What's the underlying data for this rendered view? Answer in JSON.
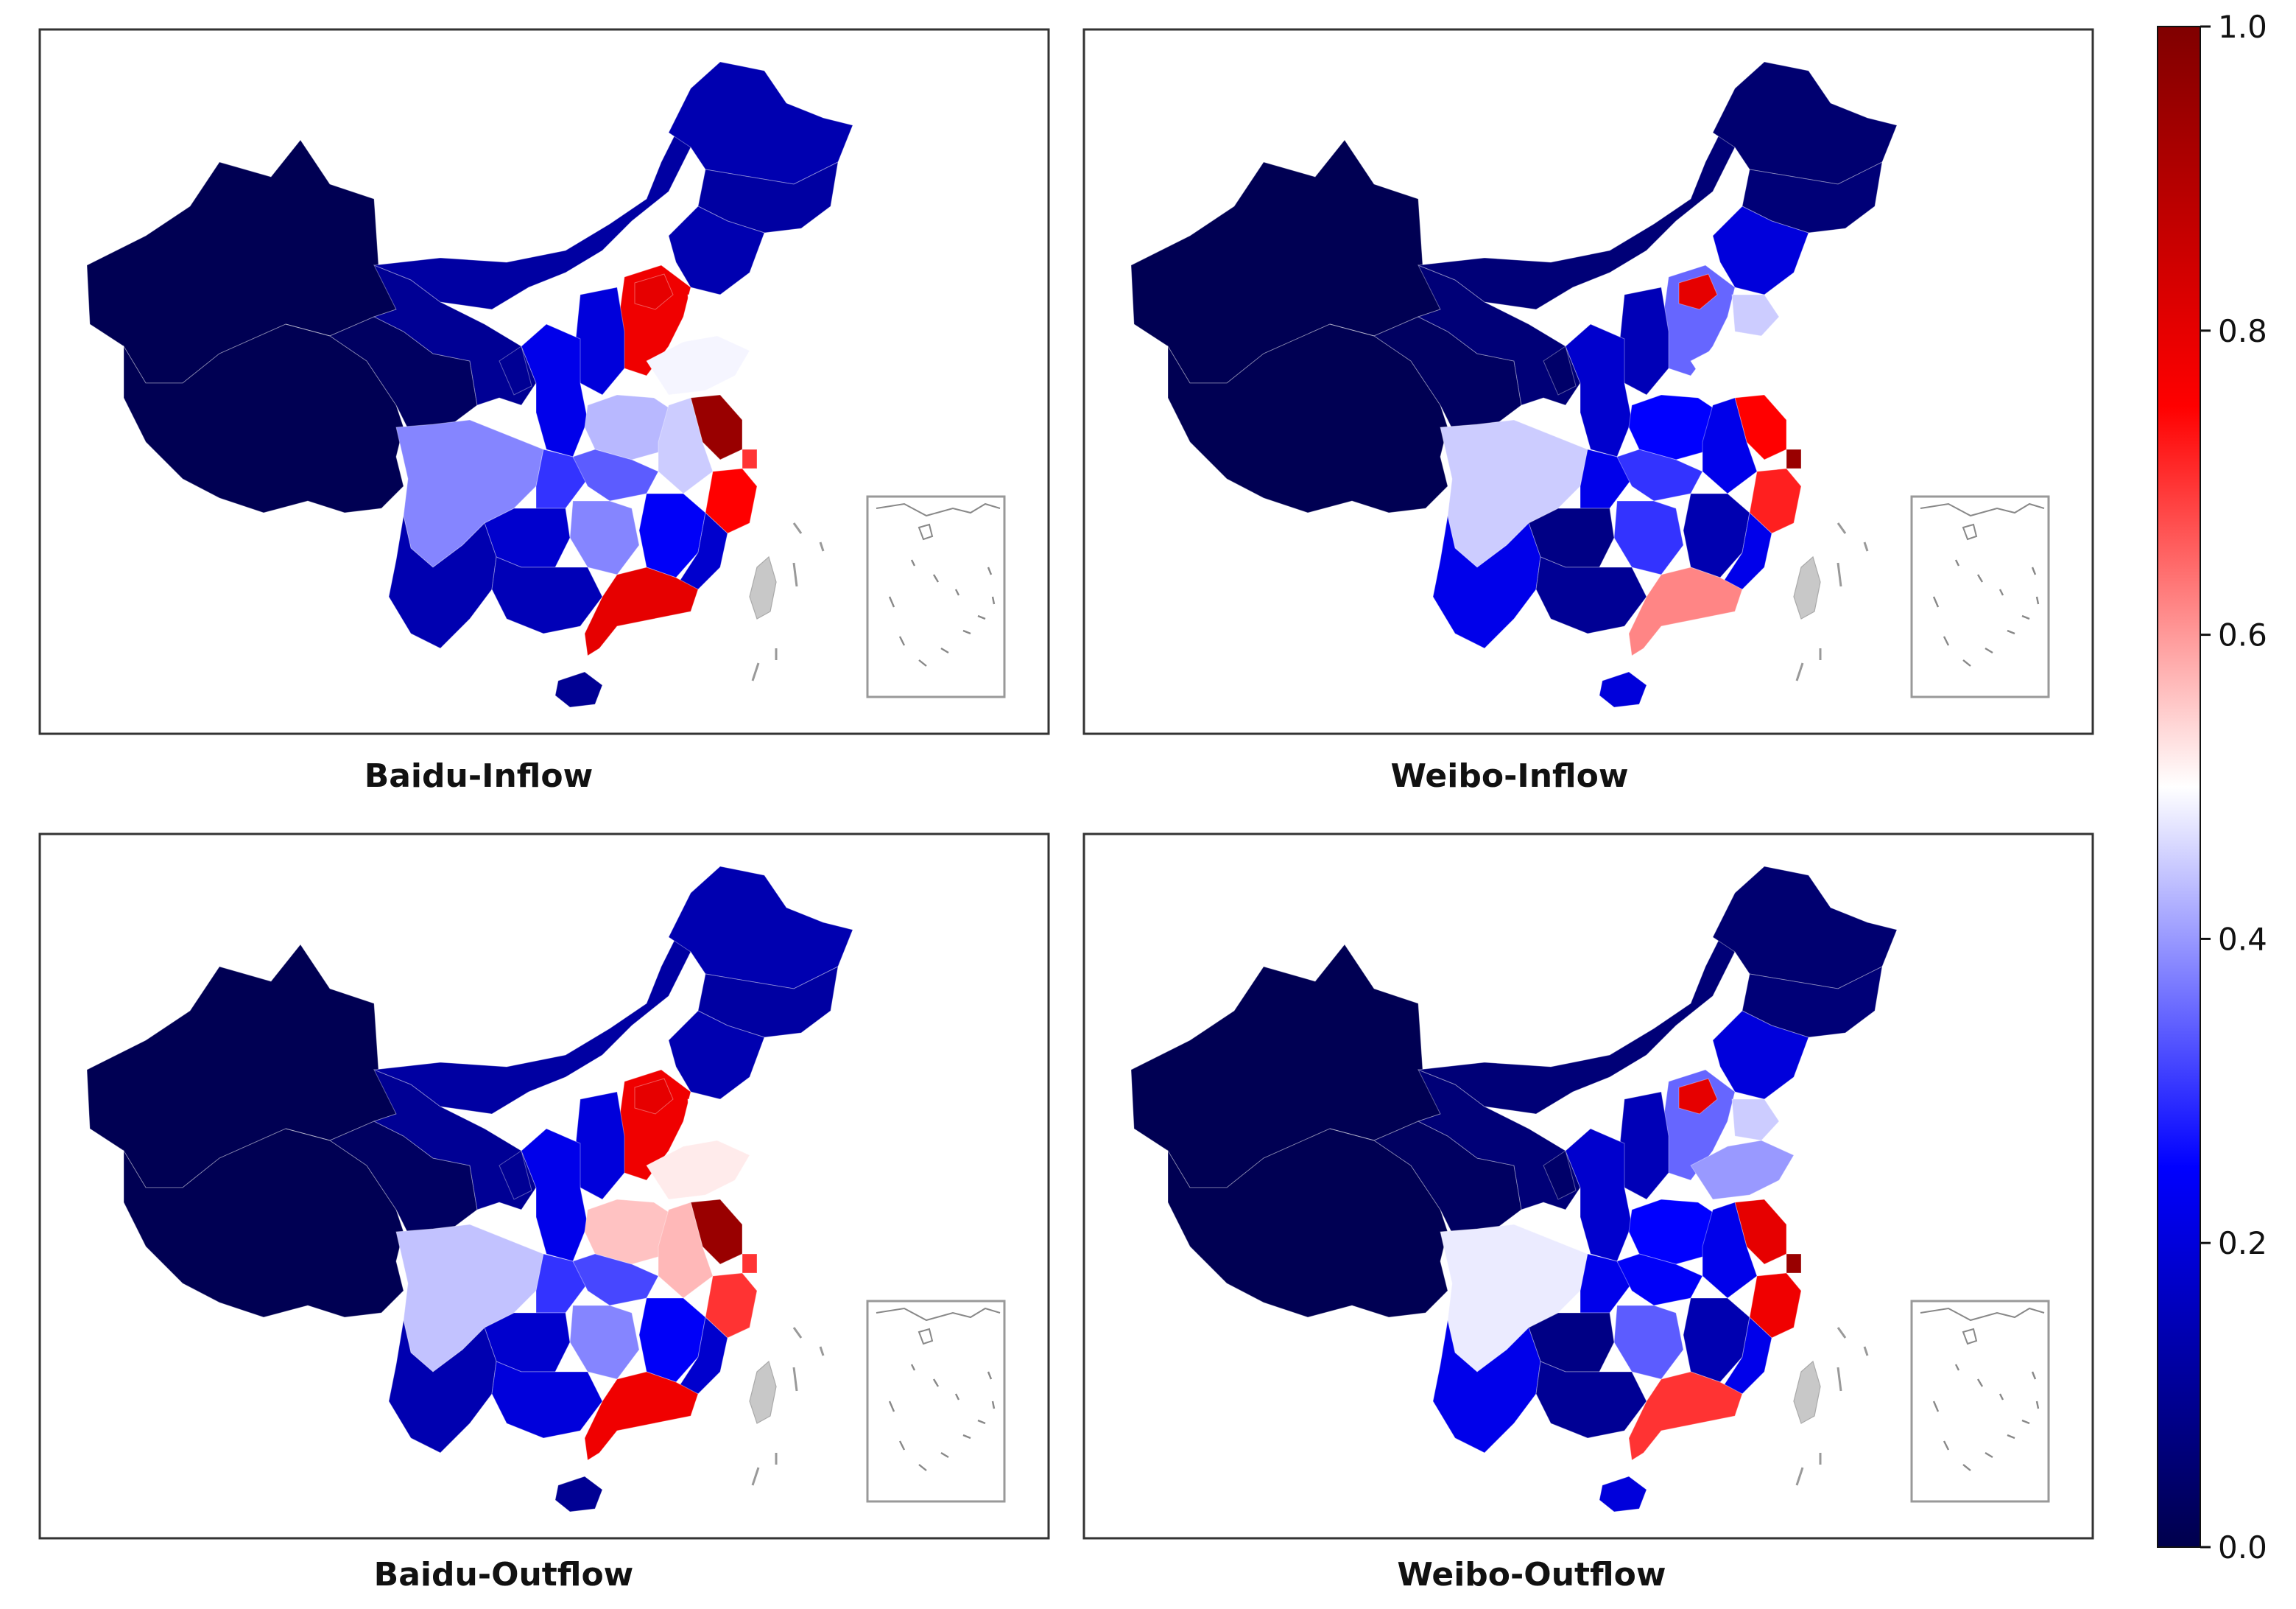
{
  "panels": [
    {
      "title": "Baidu-Inflow",
      "regions": {
        "xinjiang": 0.01,
        "tibet": 0.01,
        "qinghai": 0.03,
        "gansu": 0.1,
        "inner_mongolia": 0.12,
        "heilongjiang": 0.14,
        "jilin": 0.12,
        "liaoning": 0.14,
        "beijing": 0.8,
        "hebei": 0.78,
        "tianjin": 0.5,
        "shanxi": 0.2,
        "shaanxi": 0.22,
        "ningxia": 0.1,
        "shandong": 0.49,
        "henan": 0.43,
        "sichuan": 0.38,
        "chongqing": 0.3,
        "hubei": 0.34,
        "anhui": 0.45,
        "jiangsu": 0.95,
        "shanghai": 0.7,
        "zhejiang": 0.75,
        "hunan": 0.38,
        "jiangxi": 0.24,
        "fujian": 0.18,
        "guangdong": 0.8,
        "guangxi": 0.15,
        "guizhou": 0.18,
        "yunnan": 0.14,
        "hainan": 0.1
      }
    },
    {
      "title": "Weibo-Inflow",
      "regions": {
        "xinjiang": 0.01,
        "tibet": 0.01,
        "qinghai": 0.03,
        "gansu": 0.06,
        "inner_mongolia": 0.06,
        "heilongjiang": 0.05,
        "jilin": 0.06,
        "liaoning": 0.2,
        "beijing": 0.8,
        "hebei": 0.35,
        "tianjin": 0.45,
        "shanxi": 0.15,
        "shaanxi": 0.18,
        "ningxia": 0.04,
        "shandong": 0.5,
        "henan": 0.25,
        "sichuan": 0.45,
        "chongqing": 0.22,
        "hubei": 0.3,
        "anhui": 0.22,
        "jiangsu": 0.75,
        "shanghai": 0.95,
        "zhejiang": 0.72,
        "hunan": 0.3,
        "jiangxi": 0.14,
        "fujian": 0.22,
        "guangdong": 0.62,
        "guangxi": 0.1,
        "guizhou": 0.08,
        "yunnan": 0.22,
        "hainan": 0.2
      }
    },
    {
      "title": "Baidu-Outflow",
      "regions": {
        "xinjiang": 0.01,
        "tibet": 0.01,
        "qinghai": 0.03,
        "gansu": 0.1,
        "inner_mongolia": 0.12,
        "heilongjiang": 0.14,
        "jilin": 0.12,
        "liaoning": 0.14,
        "beijing": 0.8,
        "hebei": 0.78,
        "tianjin": 0.5,
        "shanxi": 0.2,
        "shaanxi": 0.22,
        "ningxia": 0.1,
        "shandong": 0.52,
        "henan": 0.56,
        "sichuan": 0.44,
        "chongqing": 0.3,
        "hubei": 0.32,
        "anhui": 0.57,
        "jiangsu": 0.95,
        "shanghai": 0.7,
        "zhejiang": 0.7,
        "hunan": 0.38,
        "jiangxi": 0.24,
        "fujian": 0.18,
        "guangdong": 0.78,
        "guangxi": 0.2,
        "guizhou": 0.18,
        "yunnan": 0.14,
        "hainan": 0.1
      }
    },
    {
      "title": "Weibo-Outflow",
      "regions": {
        "xinjiang": 0.01,
        "tibet": 0.01,
        "qinghai": 0.03,
        "gansu": 0.06,
        "inner_mongolia": 0.06,
        "heilongjiang": 0.05,
        "jilin": 0.06,
        "liaoning": 0.2,
        "beijing": 0.8,
        "hebei": 0.35,
        "tianjin": 0.45,
        "shanxi": 0.15,
        "shaanxi": 0.18,
        "ningxia": 0.04,
        "shandong": 0.4,
        "henan": 0.25,
        "sichuan": 0.48,
        "chongqing": 0.22,
        "hubei": 0.24,
        "anhui": 0.22,
        "jiangsu": 0.8,
        "shanghai": 0.95,
        "zhejiang": 0.78,
        "hunan": 0.34,
        "jiangxi": 0.14,
        "fujian": 0.22,
        "guangdong": 0.7,
        "guangxi": 0.1,
        "guizhou": 0.08,
        "yunnan": 0.22,
        "hainan": 0.2
      }
    }
  ],
  "colorbar": {
    "colormap": "seismic",
    "ticks": [
      "0.0",
      "0.2",
      "0.4",
      "0.6",
      "0.8",
      "1.0"
    ],
    "range": [
      0,
      1
    ]
  },
  "colors": {
    "taiwan": "#c8c8c8",
    "border": "#333333"
  }
}
